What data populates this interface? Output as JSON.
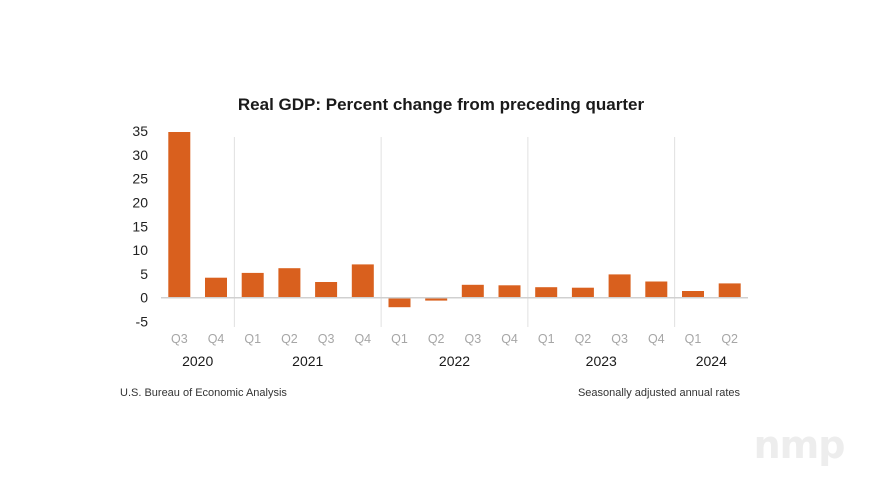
{
  "chart_data": {
    "type": "bar",
    "title": "Real GDP: Percent change from preceding quarter",
    "xlabel": "",
    "ylabel": "",
    "ylim": [
      -5,
      35
    ],
    "yticks": [
      35,
      30,
      25,
      20,
      15,
      10,
      5,
      0,
      -5
    ],
    "categories": [
      "Q3",
      "Q4",
      "Q1",
      "Q2",
      "Q3",
      "Q4",
      "Q1",
      "Q2",
      "Q3",
      "Q4",
      "Q1",
      "Q2",
      "Q3",
      "Q4",
      "Q1",
      "Q2"
    ],
    "year_groups": [
      {
        "label": "2020",
        "start": 0,
        "count": 2
      },
      {
        "label": "2021",
        "start": 2,
        "count": 4
      },
      {
        "label": "2022",
        "start": 6,
        "count": 4
      },
      {
        "label": "2023",
        "start": 10,
        "count": 4
      },
      {
        "label": "2024",
        "start": 14,
        "count": 2
      }
    ],
    "series": [
      {
        "name": "Real GDP percent change",
        "color": "#d9601e",
        "values": [
          34.8,
          4.2,
          5.2,
          6.2,
          3.3,
          7.0,
          -2.0,
          -0.6,
          2.7,
          2.6,
          2.2,
          2.1,
          4.9,
          3.4,
          1.4,
          3.0
        ]
      }
    ],
    "grid": false,
    "legend": "none",
    "source": "U.S. Bureau of Economic Analysis",
    "note": "Seasonally adjusted annual rates"
  },
  "watermark": "nmp",
  "colors": {
    "bar": "#d9601e",
    "axis": "#d0d0d0",
    "separator": "#e0e0e0",
    "watermark": "#ededed"
  }
}
